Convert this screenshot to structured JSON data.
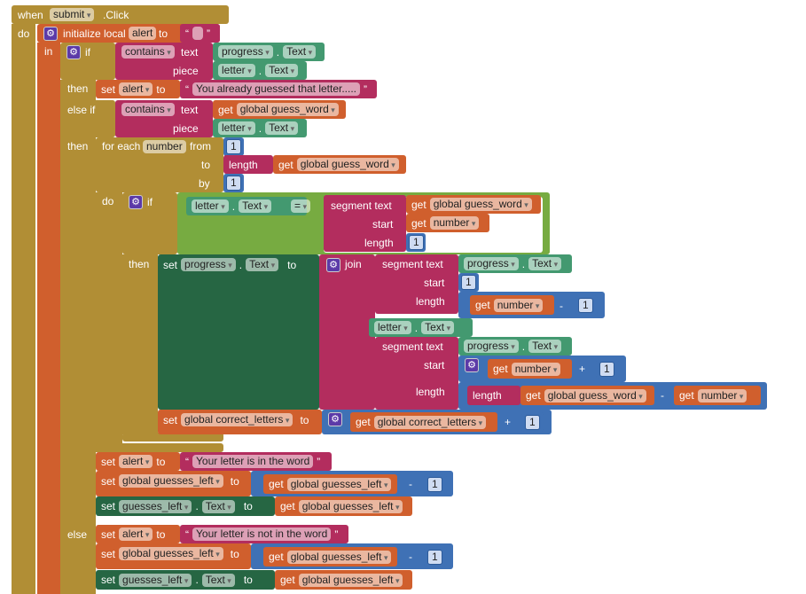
{
  "kw": {
    "when": "when",
    "do": "do",
    "in": "in",
    "if": "if",
    "then": "then",
    "else_if": "else if",
    "else": "else",
    "set": "set",
    "to": "to",
    "get": "get",
    "text": "text",
    "piece": "piece",
    "contains": "contains",
    "segment_text": "segment text",
    "start": "start",
    "length": "length",
    "join": "join",
    "for_each": "for each",
    "from": "from",
    "by": "by",
    "initialize_local": "initialize local",
    "dot": ".",
    "open_quote": "“",
    "close_quote": "”",
    "eq": "=",
    "minus": "-",
    "plus": "+"
  },
  "event": {
    "component": "submit",
    "event": ".Click"
  },
  "vars": {
    "alert": "alert",
    "number": "number",
    "guess_word": "global guess_word",
    "correct_letters": "global correct_letters",
    "guesses_left": "global guesses_left"
  },
  "components": {
    "progress": "progress",
    "letter": "letter",
    "guesses_left": "guesses_left",
    "prop_text": "Text"
  },
  "numbers": {
    "one": "1"
  },
  "strings": {
    "empty": "",
    "already": "You already guessed that letter.....",
    "in_word": "Your letter is in the word",
    "not_in_word": "Your letter is not in the word"
  },
  "colors": {
    "control": "#B18E35",
    "variable": "#D05F2D",
    "text": "#B32D5E",
    "component_get": "#439970",
    "component_set": "#266643",
    "math": "#3F71B5",
    "logic": "#77AB41",
    "mutator": "#5C3AA8"
  }
}
